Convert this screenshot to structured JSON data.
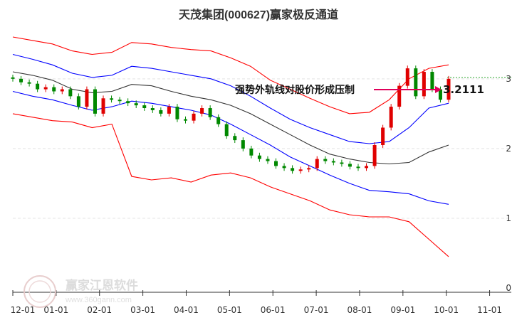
{
  "chart_data": {
    "type": "candlestick",
    "title": "天茂集团(000627)赢家极反通道",
    "x_tick_labels": [
      "12-01",
      "01-01",
      "02-01",
      "03-01",
      "04-01",
      "05-01",
      "06-01",
      "07-01",
      "08-01",
      "09-01",
      "10-01",
      "11-01"
    ],
    "y_tick_labels": [
      "3",
      "2",
      "1",
      "0"
    ],
    "y_ticks": [
      3,
      2,
      1,
      0
    ],
    "ylim": [
      0,
      3.6
    ],
    "annotation": {
      "text": "强势外轨线对股价形成压制",
      "price": "3.2111"
    },
    "reference_level": 3.02,
    "series": {
      "upper_band": {
        "color": "#ff0000",
        "values": [
          3.6,
          3.55,
          3.5,
          3.4,
          3.35,
          3.38,
          3.52,
          3.5,
          3.45,
          3.42,
          3.4,
          3.3,
          3.18,
          2.98,
          2.85,
          2.72,
          2.6,
          2.5,
          2.52,
          2.7,
          3.0,
          3.15,
          3.2
        ]
      },
      "upper_rail": {
        "color": "#0000ff",
        "values": [
          3.35,
          3.28,
          3.2,
          3.08,
          3.02,
          3.05,
          3.18,
          3.15,
          3.1,
          3.05,
          3.0,
          2.9,
          2.75,
          2.58,
          2.42,
          2.3,
          2.2,
          2.1,
          2.07,
          2.1,
          2.3,
          2.58,
          2.65
        ]
      },
      "middle_line": {
        "color": "#333333",
        "values": [
          3.1,
          3.05,
          2.98,
          2.85,
          2.8,
          2.82,
          2.92,
          2.9,
          2.82,
          2.75,
          2.7,
          2.62,
          2.5,
          2.35,
          2.2,
          2.05,
          1.92,
          1.85,
          1.8,
          1.78,
          1.8,
          1.95,
          2.05
        ]
      },
      "lower_rail": {
        "color": "#0000ff",
        "values": [
          2.82,
          2.75,
          2.7,
          2.62,
          2.55,
          2.6,
          2.68,
          2.65,
          2.6,
          2.55,
          2.48,
          2.35,
          2.2,
          2.05,
          1.88,
          1.75,
          1.62,
          1.5,
          1.4,
          1.38,
          1.35,
          1.25,
          1.2
        ]
      },
      "lower_band": {
        "color": "#ff0000",
        "values": [
          2.5,
          2.45,
          2.4,
          2.38,
          2.3,
          2.35,
          1.6,
          1.55,
          1.58,
          1.52,
          1.62,
          1.65,
          1.58,
          1.45,
          1.35,
          1.25,
          1.12,
          1.05,
          1.02,
          1.02,
          0.95,
          0.7,
          0.45
        ]
      },
      "price": {
        "up_color": "#e00000",
        "down_color": "#008800",
        "values": [
          3.0,
          2.95,
          2.93,
          2.85,
          2.88,
          2.82,
          2.85,
          2.75,
          2.6,
          2.85,
          2.5,
          2.72,
          2.7,
          2.68,
          2.65,
          2.62,
          2.58,
          2.55,
          2.5,
          2.6,
          2.42,
          2.4,
          2.5,
          2.58,
          2.45,
          2.35,
          2.18,
          2.12,
          2.0,
          1.9,
          1.85,
          1.82,
          1.75,
          1.72,
          1.68,
          1.7,
          1.72,
          1.85,
          1.82,
          1.8,
          1.78,
          1.74,
          1.72,
          1.75,
          2.05,
          2.3,
          2.6,
          2.9,
          3.15,
          2.75,
          3.1,
          2.85,
          2.7,
          3.0
        ]
      }
    }
  }
}
